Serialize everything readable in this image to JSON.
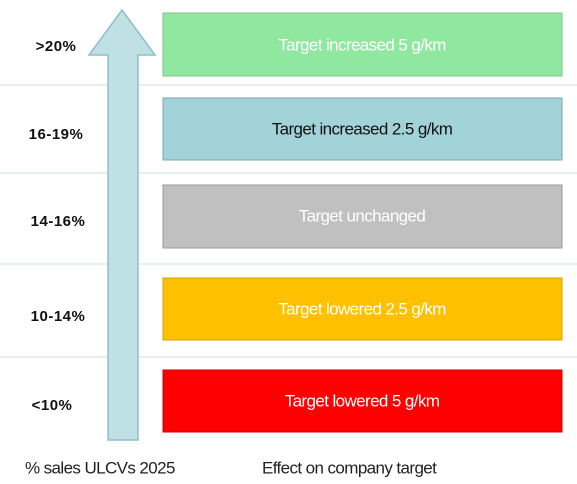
{
  "rows": [
    {
      "range": ">20%",
      "effect": "Target increased 5 g/km"
    },
    {
      "range": "16-19%",
      "effect": "Target increased 2.5 g/km"
    },
    {
      "range": "14-16%",
      "effect": "Target unchanged"
    },
    {
      "range": "10-14%",
      "effect": "Target lowered 2.5 g/km"
    },
    {
      "range": "<10%",
      "effect": "Target lowered 5 g/km"
    }
  ],
  "footer": {
    "left": "% sales ULCVs 2025",
    "right": "Effect on company target"
  }
}
